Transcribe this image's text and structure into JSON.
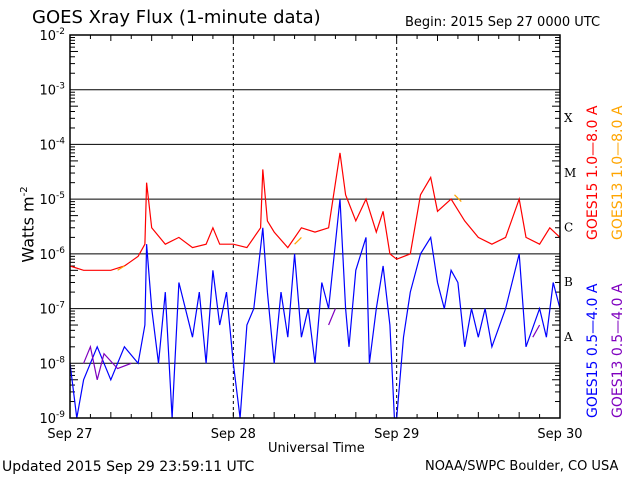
{
  "chart_data": {
    "type": "line",
    "title": "GOES Xray Flux (1-minute data)",
    "subtitle": "Begin:  2015 Sep 27 0000 UTC",
    "xlabel": "Universal Time",
    "ylabel": "Watts m",
    "ylabel_sup": "-2",
    "yscale": "log",
    "ylim": [
      1e-09,
      0.01
    ],
    "yticks": [
      {
        "base": "10",
        "exp": "-9"
      },
      {
        "base": "10",
        "exp": "-8"
      },
      {
        "base": "10",
        "exp": "-7"
      },
      {
        "base": "10",
        "exp": "-6"
      },
      {
        "base": "10",
        "exp": "-5"
      },
      {
        "base": "10",
        "exp": "-4"
      },
      {
        "base": "10",
        "exp": "-3"
      },
      {
        "base": "10",
        "exp": "-2"
      }
    ],
    "xticks": [
      "Sep 27",
      "Sep 28",
      "Sep 29",
      "Sep 30"
    ],
    "flare_classes": [
      "A",
      "B",
      "C",
      "M",
      "X"
    ],
    "grid": true,
    "series": [
      {
        "name": "GOES15 1.0—8.0 A",
        "color": "#ff0000",
        "points": [
          [
            "Sep 27 00:00",
            6e-07
          ],
          [
            "Sep 27 02:00",
            5e-07
          ],
          [
            "Sep 27 04:00",
            5e-07
          ],
          [
            "Sep 27 06:00",
            5e-07
          ],
          [
            "Sep 27 08:00",
            6e-07
          ],
          [
            "Sep 27 10:00",
            9e-07
          ],
          [
            "Sep 27 11:00",
            1.5e-06
          ],
          [
            "Sep 27 11:15",
            2e-05
          ],
          [
            "Sep 27 12:00",
            3e-06
          ],
          [
            "Sep 27 14:00",
            1.5e-06
          ],
          [
            "Sep 27 16:00",
            2e-06
          ],
          [
            "Sep 27 18:00",
            1.3e-06
          ],
          [
            "Sep 27 20:00",
            1.5e-06
          ],
          [
            "Sep 27 21:00",
            3e-06
          ],
          [
            "Sep 27 22:00",
            1.5e-06
          ],
          [
            "Sep 28 00:00",
            1.5e-06
          ],
          [
            "Sep 28 02:00",
            1.3e-06
          ],
          [
            "Sep 28 04:00",
            3e-06
          ],
          [
            "Sep 28 04:20",
            3.5e-05
          ],
          [
            "Sep 28 05:00",
            4e-06
          ],
          [
            "Sep 28 06:00",
            2.5e-06
          ],
          [
            "Sep 28 08:00",
            1.3e-06
          ],
          [
            "Sep 28 10:00",
            3e-06
          ],
          [
            "Sep 28 12:00",
            2.5e-06
          ],
          [
            "Sep 28 14:00",
            3e-06
          ],
          [
            "Sep 28 15:40",
            7e-05
          ],
          [
            "Sep 28 16:30",
            1.2e-05
          ],
          [
            "Sep 28 18:00",
            4e-06
          ],
          [
            "Sep 28 19:30",
            1e-05
          ],
          [
            "Sep 28 21:00",
            2.5e-06
          ],
          [
            "Sep 28 22:00",
            6e-06
          ],
          [
            "Sep 28 23:00",
            1e-06
          ],
          [
            "Sep 29 00:00",
            8e-07
          ],
          [
            "Sep 29 02:00",
            1e-06
          ],
          [
            "Sep 29 03:30",
            1.2e-05
          ],
          [
            "Sep 29 05:00",
            2.5e-05
          ],
          [
            "Sep 29 06:00",
            6e-06
          ],
          [
            "Sep 29 08:00",
            1e-05
          ],
          [
            "Sep 29 10:00",
            4e-06
          ],
          [
            "Sep 29 12:00",
            2e-06
          ],
          [
            "Sep 29 14:00",
            1.5e-06
          ],
          [
            "Sep 29 16:00",
            2e-06
          ],
          [
            "Sep 29 18:00",
            1e-05
          ],
          [
            "Sep 29 19:00",
            2e-06
          ],
          [
            "Sep 29 21:00",
            1.5e-06
          ],
          [
            "Sep 29 22:30",
            3e-06
          ],
          [
            "Sep 30 00:00",
            2e-06
          ]
        ]
      },
      {
        "name": "GOES13 1.0—8.0 A",
        "color": "#ffa500",
        "points": [
          [
            "Sep 27 07:00",
            5e-07
          ],
          [
            "Sep 27 08:00",
            6e-07
          ],
          [
            "Sep 28 09:00",
            1.5e-06
          ],
          [
            "Sep 28 10:00",
            2e-06
          ],
          [
            "Sep 29 08:30",
            1.2e-05
          ],
          [
            "Sep 29 09:30",
            9e-06
          ]
        ]
      },
      {
        "name": "GOES15 0.5—4.0 A",
        "color": "#0000ff",
        "points": [
          [
            "Sep 27 00:00",
            1e-08
          ],
          [
            "Sep 27 01:00",
            1e-09
          ],
          [
            "Sep 27 02:00",
            5e-09
          ],
          [
            "Sep 27 04:00",
            2e-08
          ],
          [
            "Sep 27 06:00",
            5e-09
          ],
          [
            "Sep 27 08:00",
            2e-08
          ],
          [
            "Sep 27 10:00",
            1e-08
          ],
          [
            "Sep 27 11:00",
            5e-08
          ],
          [
            "Sep 27 11:15",
            1.5e-06
          ],
          [
            "Sep 27 12:00",
            1e-07
          ],
          [
            "Sep 27 13:00",
            1e-08
          ],
          [
            "Sep 27 14:00",
            2e-07
          ],
          [
            "Sep 27 15:00",
            1e-09
          ],
          [
            "Sep 27 16:00",
            3e-07
          ],
          [
            "Sep 27 18:00",
            3e-08
          ],
          [
            "Sep 27 19:00",
            2e-07
          ],
          [
            "Sep 27 20:00",
            1e-08
          ],
          [
            "Sep 27 21:00",
            5e-07
          ],
          [
            "Sep 27 22:00",
            5e-08
          ],
          [
            "Sep 27 23:00",
            2e-07
          ],
          [
            "Sep 28 00:00",
            1e-08
          ],
          [
            "Sep 28 01:00",
            1e-09
          ],
          [
            "Sep 28 02:00",
            5e-08
          ],
          [
            "Sep 28 03:00",
            1e-07
          ],
          [
            "Sep 28 04:20",
            3e-06
          ],
          [
            "Sep 28 05:00",
            2e-07
          ],
          [
            "Sep 28 06:00",
            1e-08
          ],
          [
            "Sep 28 07:00",
            2e-07
          ],
          [
            "Sep 28 08:00",
            3e-08
          ],
          [
            "Sep 28 09:00",
            1e-06
          ],
          [
            "Sep 28 10:00",
            3e-08
          ],
          [
            "Sep 28 11:00",
            1e-07
          ],
          [
            "Sep 28 12:00",
            1e-08
          ],
          [
            "Sep 28 13:00",
            3e-07
          ],
          [
            "Sep 28 14:00",
            1e-07
          ],
          [
            "Sep 28 15:40",
            1e-05
          ],
          [
            "Sep 28 16:30",
            1e-07
          ],
          [
            "Sep 28 17:00",
            2e-08
          ],
          [
            "Sep 28 18:00",
            5e-07
          ],
          [
            "Sep 28 19:30",
            2e-06
          ],
          [
            "Sep 28 20:00",
            1e-08
          ],
          [
            "Sep 28 21:00",
            1e-07
          ],
          [
            "Sep 28 22:00",
            6e-07
          ],
          [
            "Sep 28 23:00",
            5e-08
          ],
          [
            "Sep 28 23:40",
            1e-09
          ],
          [
            "Sep 29 00:00",
            1e-09
          ],
          [
            "Sep 29 01:00",
            3e-08
          ],
          [
            "Sep 29 02:00",
            2e-07
          ],
          [
            "Sep 29 03:30",
            1e-06
          ],
          [
            "Sep 29 05:00",
            2e-06
          ],
          [
            "Sep 29 06:00",
            3e-07
          ],
          [
            "Sep 29 07:00",
            1e-07
          ],
          [
            "Sep 29 08:00",
            5e-07
          ],
          [
            "Sep 29 09:00",
            3e-07
          ],
          [
            "Sep 29 10:00",
            2e-08
          ],
          [
            "Sep 29 11:00",
            1e-07
          ],
          [
            "Sep 29 12:00",
            3e-08
          ],
          [
            "Sep 29 13:00",
            1e-07
          ],
          [
            "Sep 29 14:00",
            2e-08
          ],
          [
            "Sep 29 16:00",
            1e-07
          ],
          [
            "Sep 29 18:00",
            1e-06
          ],
          [
            "Sep 29 19:00",
            2e-08
          ],
          [
            "Sep 29 21:00",
            1e-07
          ],
          [
            "Sep 29 22:00",
            3e-08
          ],
          [
            "Sep 29 23:00",
            3e-07
          ],
          [
            "Sep 30 00:00",
            1e-07
          ]
        ]
      },
      {
        "name": "GOES13 0.5—4.0 A",
        "color": "#7f00bf",
        "points": [
          [
            "Sep 27 02:00",
            1e-08
          ],
          [
            "Sep 27 03:00",
            2e-08
          ],
          [
            "Sep 27 04:00",
            5e-09
          ],
          [
            "Sep 27 05:00",
            1.5e-08
          ],
          [
            "Sep 27 07:00",
            8e-09
          ],
          [
            "Sep 27 09:00",
            1e-08
          ],
          [
            "Sep 28 14:00",
            5e-08
          ],
          [
            "Sep 28 15:00",
            1e-07
          ],
          [
            "Sep 29 20:00",
            3e-08
          ],
          [
            "Sep 29 21:00",
            5e-08
          ]
        ]
      }
    ]
  },
  "footer": {
    "updated": "Updated 2015 Sep 29 23:59:11 UTC",
    "credit": "NOAA/SWPC Boulder, CO USA"
  }
}
